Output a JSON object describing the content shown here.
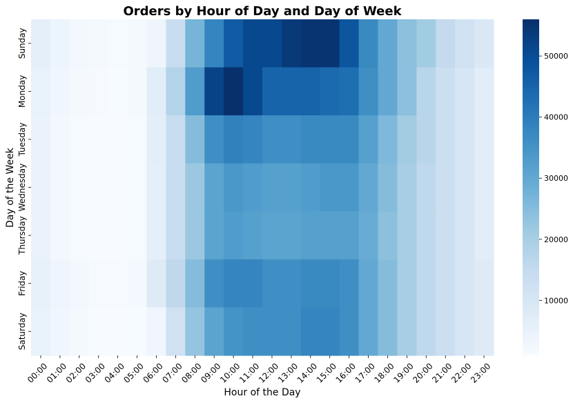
{
  "chart_data": {
    "type": "heatmap",
    "title": "Orders by Hour of Day and Day of Week",
    "xlabel": "Hour of the Day",
    "ylabel": "Day of the Week",
    "x": [
      "00:00",
      "01:00",
      "02:00",
      "03:00",
      "04:00",
      "05:00",
      "06:00",
      "07:00",
      "08:00",
      "09:00",
      "10:00",
      "11:00",
      "12:00",
      "13:00",
      "14:00",
      "15:00",
      "16:00",
      "17:00",
      "18:00",
      "19:00",
      "20:00",
      "21:00",
      "22:00",
      "23:00"
    ],
    "y": [
      "Sunday",
      "Monday",
      "Tuesday",
      "Wednesday",
      "Thursday",
      "Friday",
      "Saturday"
    ],
    "values": [
      [
        6000,
        4000,
        2500,
        1800,
        1500,
        1800,
        3500,
        14000,
        27000,
        38000,
        47000,
        51000,
        51000,
        54000,
        55000,
        55000,
        48000,
        37000,
        30000,
        24000,
        21000,
        15000,
        12000,
        9000
      ],
      [
        5000,
        3000,
        1800,
        1300,
        1200,
        1800,
        7000,
        18000,
        33000,
        52000,
        56000,
        51000,
        45000,
        45000,
        45000,
        44000,
        43000,
        36000,
        30000,
        24000,
        17000,
        13000,
        10000,
        7000
      ],
      [
        4500,
        2500,
        1500,
        1100,
        1000,
        1500,
        6500,
        14000,
        25000,
        36000,
        39000,
        38000,
        36000,
        36000,
        37000,
        37000,
        37000,
        32000,
        26000,
        21000,
        17000,
        13000,
        10000,
        7000
      ],
      [
        4500,
        2500,
        1500,
        1100,
        1000,
        1500,
        6000,
        14000,
        22000,
        31000,
        34000,
        33000,
        32000,
        32000,
        33000,
        34000,
        34000,
        30000,
        25000,
        20000,
        16000,
        13000,
        10000,
        7000
      ],
      [
        4500,
        2500,
        1500,
        1100,
        1000,
        1500,
        6000,
        14000,
        22000,
        31000,
        33000,
        32000,
        31000,
        31000,
        32000,
        32000,
        32000,
        29000,
        24000,
        20000,
        16000,
        13000,
        10000,
        7000
      ],
      [
        5500,
        3500,
        2200,
        1500,
        1300,
        2000,
        8000,
        16000,
        25000,
        36000,
        38000,
        38000,
        36000,
        36000,
        37000,
        37000,
        36000,
        30000,
        25000,
        20000,
        16000,
        13000,
        10000,
        8000
      ],
      [
        5000,
        3000,
        1800,
        1200,
        1000,
        1200,
        3000,
        12000,
        23000,
        31000,
        35000,
        36000,
        36000,
        36000,
        38000,
        38000,
        36000,
        30000,
        25000,
        20000,
        16000,
        13000,
        10000,
        8000
      ]
    ],
    "colormap": "Blues",
    "vmin": 1000,
    "vmax": 56000,
    "colorbar_ticks": [
      10000,
      20000,
      30000,
      40000,
      50000
    ],
    "colorbar_tick_labels": [
      "10000",
      "20000",
      "30000",
      "40000",
      "50000"
    ],
    "grid": false,
    "legend": "colorbar-right"
  }
}
